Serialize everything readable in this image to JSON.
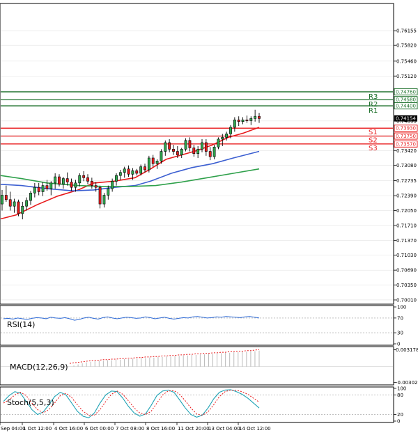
{
  "chart_data": {
    "type": "candlestick",
    "price": {
      "ylim": [
        0.6993,
        0.7676
      ],
      "y_ticks": [
        "0.76155",
        "0.75820",
        "0.75460",
        "0.75120",
        "0.74780",
        "0.74440",
        "0.74095",
        "0.73760",
        "0.73420",
        "0.73080",
        "0.72735",
        "0.72390",
        "0.72050",
        "0.71710",
        "0.71370",
        "0.71030",
        "0.70690",
        "0.70350",
        "0.70010"
      ],
      "current_price": 0.74154,
      "current_price_label": "0.74154",
      "candles": [
        [
          0.722,
          0.7252,
          0.7205,
          0.724
        ],
        [
          0.724,
          0.7262,
          0.7225,
          0.723
        ],
        [
          0.723,
          0.7248,
          0.7205,
          0.7215
        ],
        [
          0.7215,
          0.7232,
          0.72,
          0.7225
        ],
        [
          0.7225,
          0.723,
          0.7192,
          0.7198
        ],
        [
          0.7198,
          0.7225,
          0.7185,
          0.7215
        ],
        [
          0.7215,
          0.7235,
          0.7205,
          0.7228
        ],
        [
          0.7228,
          0.725,
          0.7218,
          0.7245
        ],
        [
          0.7245,
          0.7268,
          0.7235,
          0.7258
        ],
        [
          0.7258,
          0.7268,
          0.724,
          0.7248
        ],
        [
          0.7248,
          0.727,
          0.7238,
          0.7262
        ],
        [
          0.7262,
          0.7275,
          0.725,
          0.7255
        ],
        [
          0.7255,
          0.7272,
          0.724,
          0.7268
        ],
        [
          0.7268,
          0.729,
          0.7255,
          0.7282
        ],
        [
          0.7282,
          0.7288,
          0.726,
          0.7265
        ],
        [
          0.7265,
          0.7282,
          0.7255,
          0.7278
        ],
        [
          0.7278,
          0.7292,
          0.7262,
          0.727
        ],
        [
          0.727,
          0.7278,
          0.725,
          0.7258
        ],
        [
          0.7258,
          0.7275,
          0.7248,
          0.7268
        ],
        [
          0.7268,
          0.729,
          0.726,
          0.7285
        ],
        [
          0.7285,
          0.7295,
          0.7272,
          0.728
        ],
        [
          0.728,
          0.7288,
          0.7265,
          0.7272
        ],
        [
          0.7272,
          0.728,
          0.7255,
          0.7262
        ],
        [
          0.7262,
          0.727,
          0.7248,
          0.7258
        ],
        [
          0.7258,
          0.7262,
          0.721,
          0.722
        ],
        [
          0.722,
          0.7245,
          0.7212,
          0.724
        ],
        [
          0.724,
          0.7262,
          0.723,
          0.7255
        ],
        [
          0.7255,
          0.7278,
          0.7248,
          0.7272
        ],
        [
          0.7272,
          0.729,
          0.7262,
          0.7285
        ],
        [
          0.7285,
          0.7298,
          0.7275,
          0.7292
        ],
        [
          0.7292,
          0.7305,
          0.728,
          0.73
        ],
        [
          0.73,
          0.7308,
          0.7282,
          0.7288
        ],
        [
          0.7288,
          0.7302,
          0.7275,
          0.7296
        ],
        [
          0.7296,
          0.73,
          0.7285,
          0.729
        ],
        [
          0.729,
          0.731,
          0.7285,
          0.7305
        ],
        [
          0.7305,
          0.7312,
          0.7292,
          0.7298
        ],
        [
          0.7298,
          0.733,
          0.7292,
          0.7325
        ],
        [
          0.7325,
          0.7332,
          0.7305,
          0.7312
        ],
        [
          0.7312,
          0.7322,
          0.73,
          0.7318
        ],
        [
          0.7318,
          0.7345,
          0.7312,
          0.734
        ],
        [
          0.734,
          0.7365,
          0.733,
          0.736
        ],
        [
          0.736,
          0.7368,
          0.7338,
          0.7345
        ],
        [
          0.7345,
          0.7355,
          0.7332,
          0.734
        ],
        [
          0.734,
          0.7352,
          0.7325,
          0.7332
        ],
        [
          0.7332,
          0.7348,
          0.7325,
          0.7345
        ],
        [
          0.7345,
          0.737,
          0.734,
          0.7365
        ],
        [
          0.7365,
          0.7372,
          0.734,
          0.7348
        ],
        [
          0.7348,
          0.7355,
          0.7328,
          0.7335
        ],
        [
          0.7335,
          0.7352,
          0.7325,
          0.7345
        ],
        [
          0.7345,
          0.7368,
          0.7338,
          0.736
        ],
        [
          0.736,
          0.7368,
          0.733,
          0.734
        ],
        [
          0.734,
          0.735,
          0.732,
          0.7328
        ],
        [
          0.7328,
          0.7355,
          0.7322,
          0.735
        ],
        [
          0.735,
          0.7372,
          0.7345,
          0.7368
        ],
        [
          0.7368,
          0.738,
          0.7352,
          0.7372
        ],
        [
          0.7372,
          0.7385,
          0.7365,
          0.738
        ],
        [
          0.738,
          0.74,
          0.737,
          0.7395
        ],
        [
          0.7395,
          0.7418,
          0.7385,
          0.7412
        ],
        [
          0.7412,
          0.742,
          0.7398,
          0.7408
        ],
        [
          0.7408,
          0.7418,
          0.7402,
          0.7412
        ],
        [
          0.7412,
          0.7422,
          0.7405,
          0.741
        ],
        [
          0.741,
          0.742,
          0.74,
          0.7415
        ],
        [
          0.7415,
          0.7435,
          0.7408,
          0.742
        ],
        [
          0.742,
          0.7428,
          0.7405,
          0.7415
        ]
      ],
      "moving_averages": [
        {
          "color": "#e8191b",
          "points": [
            [
              0,
              0.7186
            ],
            [
              0.06,
              0.7195
            ],
            [
              0.14,
              0.7218
            ],
            [
              0.22,
              0.7238
            ],
            [
              0.3,
              0.7252
            ],
            [
              0.36,
              0.7268
            ],
            [
              0.44,
              0.7272
            ],
            [
              0.52,
              0.728
            ],
            [
              0.58,
              0.73
            ],
            [
              0.64,
              0.7322
            ],
            [
              0.7,
              0.7332
            ],
            [
              0.76,
              0.7342
            ],
            [
              0.82,
              0.7355
            ],
            [
              0.88,
              0.7372
            ],
            [
              0.94,
              0.7382
            ],
            [
              1.0,
              0.7395
            ]
          ]
        },
        {
          "color": "#3c5fd1",
          "points": [
            [
              0,
              0.7265
            ],
            [
              0.08,
              0.7262
            ],
            [
              0.18,
              0.7255
            ],
            [
              0.28,
              0.725
            ],
            [
              0.36,
              0.7252
            ],
            [
              0.44,
              0.7258
            ],
            [
              0.52,
              0.7262
            ],
            [
              0.58,
              0.7272
            ],
            [
              0.66,
              0.729
            ],
            [
              0.74,
              0.7303
            ],
            [
              0.82,
              0.7312
            ],
            [
              0.9,
              0.7325
            ],
            [
              1.0,
              0.734
            ]
          ]
        },
        {
          "color": "#2ea04a",
          "points": [
            [
              0,
              0.7285
            ],
            [
              0.08,
              0.7278
            ],
            [
              0.18,
              0.7268
            ],
            [
              0.3,
              0.7262
            ],
            [
              0.4,
              0.726
            ],
            [
              0.5,
              0.726
            ],
            [
              0.6,
              0.7262
            ],
            [
              0.7,
              0.727
            ],
            [
              0.8,
              0.728
            ],
            [
              0.9,
              0.729
            ],
            [
              1.0,
              0.73
            ]
          ]
        }
      ],
      "levels": [
        {
          "name": "R3",
          "value": 0.7476,
          "label": "0.74760",
          "color": "#1a6e28"
        },
        {
          "name": "R2",
          "value": 0.7458,
          "label": "0.74580",
          "color": "#1a6e28"
        },
        {
          "name": "R1",
          "value": 0.7444,
          "label": "0.74400",
          "color": "#1a6e28"
        },
        {
          "name": "S1",
          "value": 0.7393,
          "label": "0.73930",
          "color": "#e8191b"
        },
        {
          "name": "S2",
          "value": 0.7375,
          "label": "0.73750",
          "color": "#e8191b"
        },
        {
          "name": "S3",
          "value": 0.7357,
          "label": "0.73570",
          "color": "#e8191b"
        }
      ]
    },
    "rsi": {
      "title": "RSI(14)",
      "ylim": [
        0,
        100
      ],
      "y_ticks": [
        "100",
        "70",
        "30",
        "0"
      ],
      "levels": [
        70,
        30
      ],
      "values": [
        68,
        69,
        67,
        70,
        68,
        66,
        69,
        71,
        70,
        68,
        72,
        70,
        69,
        71,
        68,
        64,
        66,
        70,
        72,
        69,
        67,
        71,
        73,
        70,
        68,
        70,
        72,
        71,
        69,
        70,
        73,
        71,
        68,
        70,
        72,
        69,
        67,
        69,
        71,
        70,
        73,
        74,
        72,
        70,
        71,
        73,
        72,
        74,
        73,
        72,
        71,
        73,
        74,
        72,
        70
      ]
    },
    "macd": {
      "title": "MACD(12,26,9)",
      "y_ticks": [
        "0.003178",
        "-0.003026"
      ],
      "ylim": [
        -0.0032,
        0.0035
      ],
      "histogram": [
        0.0,
        0.0002,
        0.0004,
        0.0006,
        0.0008,
        0.0009,
        0.001,
        0.0011,
        0.0011,
        0.0012,
        0.0012,
        0.0013,
        0.0013,
        0.0014,
        0.0014,
        0.0015,
        0.0015,
        0.0016,
        0.0016,
        0.0017,
        0.0017,
        0.0018,
        0.0018,
        0.0019,
        0.0019,
        0.002,
        0.002,
        0.0021,
        0.0021,
        0.0022,
        0.0022,
        0.0023,
        0.0023,
        0.0024,
        0.0024,
        0.0025,
        0.0025,
        0.0026,
        0.0026,
        0.0027,
        0.0027,
        0.0028,
        0.0028,
        0.0029,
        0.0029,
        0.003
      ],
      "signal": [
        0.0006,
        0.0007,
        0.0008,
        0.0009,
        0.001,
        0.0011,
        0.0012,
        0.0012,
        0.0013,
        0.0013,
        0.0014,
        0.0014,
        0.0015,
        0.0015,
        0.0016,
        0.0016,
        0.0017,
        0.0017,
        0.0018,
        0.0018,
        0.0019,
        0.0019,
        0.002,
        0.002,
        0.0021,
        0.0021,
        0.0022,
        0.0022,
        0.0023,
        0.0023,
        0.0024,
        0.0024,
        0.0025,
        0.0025,
        0.0026,
        0.0026,
        0.0027,
        0.0027,
        0.0028,
        0.0028,
        0.0029,
        0.0029,
        0.003,
        0.003,
        0.0031,
        0.0032
      ]
    },
    "stoch": {
      "title": "Stoch(5,5,3)",
      "ylim": [
        0,
        100
      ],
      "y_ticks": [
        "100",
        "80",
        "20",
        "0"
      ],
      "levels": [
        80,
        20
      ],
      "main": [
        60,
        78,
        90,
        85,
        60,
        35,
        20,
        28,
        50,
        75,
        88,
        80,
        55,
        30,
        15,
        10,
        25,
        55,
        80,
        92,
        90,
        70,
        45,
        25,
        15,
        22,
        48,
        78,
        92,
        95,
        88,
        65,
        40,
        20,
        12,
        18,
        40,
        68,
        88,
        95,
        96,
        90,
        82,
        70,
        55,
        40
      ],
      "signal": [
        55,
        65,
        80,
        88,
        78,
        55,
        35,
        25,
        35,
        55,
        78,
        85,
        72,
        50,
        30,
        18,
        18,
        35,
        60,
        82,
        92,
        82,
        62,
        40,
        25,
        20,
        30,
        55,
        80,
        92,
        93,
        82,
        62,
        40,
        22,
        18,
        28,
        50,
        75,
        90,
        95,
        94,
        90,
        82,
        70,
        58
      ]
    },
    "x_ticks": [
      "Sep 04:00",
      "1 Oct 12:00",
      "4 Oct 16:00",
      "6 Oct 00:00",
      "7 Oct 08:00",
      "8 Oct 16:00",
      "11 Oct 20:00",
      "13 Oct 04:00",
      "14 Oct 12:00"
    ]
  }
}
